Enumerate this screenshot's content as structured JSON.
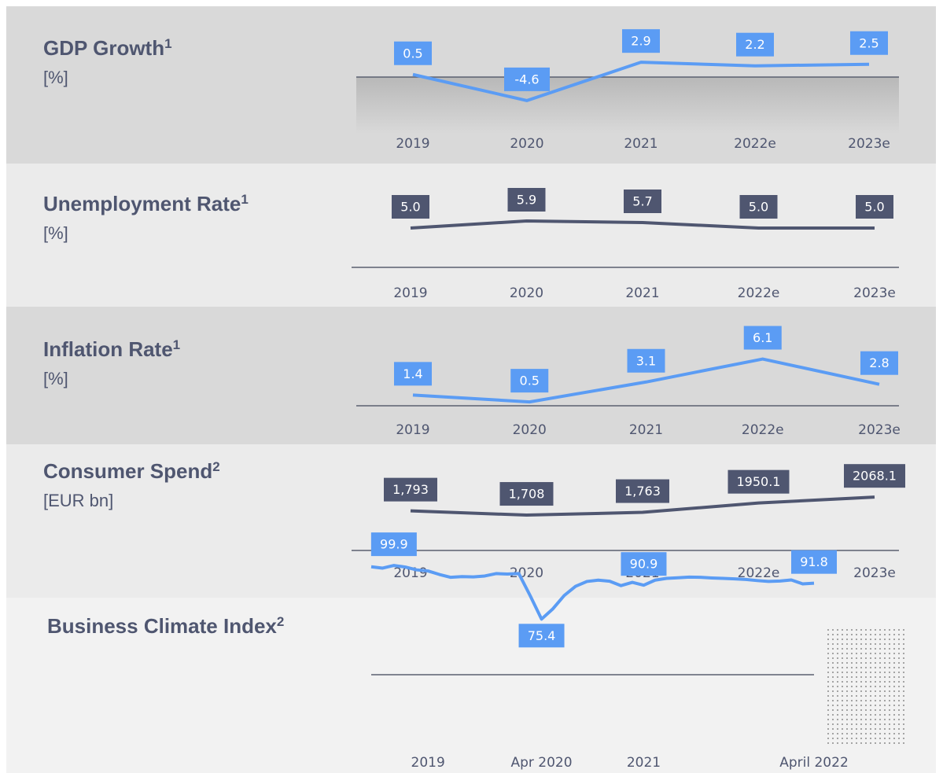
{
  "chart_data": [
    {
      "type": "line",
      "title": "GDP Growth",
      "footnote": "1",
      "subtitle": "[%]",
      "categories": [
        "2019",
        "2020",
        "2021",
        "2022e",
        "2023e"
      ],
      "values": [
        0.5,
        -4.6,
        2.9,
        2.2,
        2.5
      ],
      "color": "#5b9cf4",
      "ylim": [
        -6,
        7
      ]
    },
    {
      "type": "line",
      "title": "Unemployment Rate",
      "footnote": "1",
      "subtitle": "[%]",
      "categories": [
        "2019",
        "2020",
        "2021",
        "2022e",
        "2023e"
      ],
      "values": [
        5.0,
        5.9,
        5.7,
        5.0,
        5.0
      ],
      "value_labels": [
        "5.0",
        "5.9",
        "5.7",
        "5.0",
        "5.0"
      ],
      "color": "#4f5670",
      "ylim": [
        0,
        11
      ]
    },
    {
      "type": "line",
      "title": "Inflation Rate",
      "footnote": "1",
      "subtitle": "[%]",
      "categories": [
        "2019",
        "2020",
        "2021",
        "2022e",
        "2023e"
      ],
      "values": [
        1.4,
        0.5,
        3.1,
        6.1,
        2.8
      ],
      "color": "#5b9cf4",
      "ylim": [
        0,
        8
      ]
    },
    {
      "type": "line",
      "title": "Consumer Spend",
      "footnote": "2",
      "subtitle": "[EUR bn]",
      "categories": [
        "2019",
        "2020",
        "2021",
        "2022e",
        "2023e"
      ],
      "values": [
        1793,
        1708,
        1763,
        1950.1,
        2068.1
      ],
      "value_labels": [
        "1,793",
        "1,708",
        "1,763",
        "1950.1",
        "2068.1"
      ],
      "color": "#4f5670",
      "ylim": [
        1000,
        3000
      ]
    },
    {
      "type": "line",
      "title": "Business Climate Index",
      "footnote": "2",
      "categories": [
        null,
        null,
        null,
        null,
        null,
        "2019",
        null,
        null,
        null,
        null,
        null,
        null,
        null,
        null,
        null,
        "Apr 2020",
        null,
        null,
        null,
        null,
        null,
        null,
        null,
        null,
        "2021",
        null,
        null,
        null,
        null,
        null,
        null,
        null,
        null,
        null,
        null,
        null,
        null,
        null,
        null,
        "April 2022"
      ],
      "values": [
        99.3,
        98.7,
        99.9,
        99.2,
        97.9,
        97.4,
        95.8,
        94.5,
        94.8,
        94.7,
        95.1,
        96.2,
        96.0,
        96.2,
        86.1,
        75.4,
        80.1,
        86.2,
        90.4,
        92.6,
        93.2,
        92.7,
        90.7,
        92.2,
        90.9,
        93.2,
        94.0,
        94.3,
        94.6,
        94.5,
        94.2,
        94.0,
        93.8,
        93.5,
        93.0,
        92.6,
        92.8,
        93.3,
        91.5,
        91.8
      ],
      "value_labels": [
        null,
        null,
        "99.9",
        null,
        null,
        null,
        null,
        null,
        null,
        null,
        null,
        null,
        null,
        null,
        null,
        "75.4",
        null,
        null,
        null,
        null,
        null,
        null,
        null,
        null,
        "90.9",
        null,
        null,
        null,
        null,
        null,
        null,
        null,
        null,
        null,
        null,
        null,
        null,
        null,
        null,
        "91.8"
      ],
      "color": "#5b9cf4",
      "ylim": [
        50,
        110
      ]
    }
  ]
}
